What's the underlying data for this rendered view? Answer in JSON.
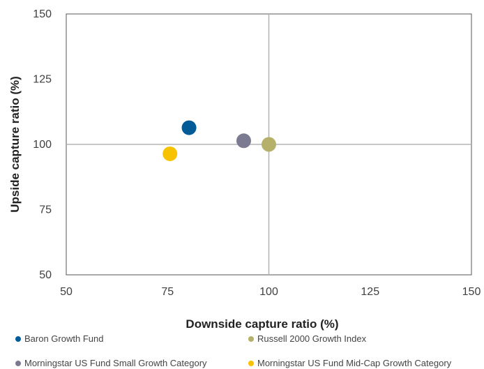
{
  "chart_data": {
    "type": "scatter",
    "xlabel": "Downside capture ratio  (%)",
    "ylabel": "Upside capture ratio  (%)",
    "xlim": [
      50,
      150
    ],
    "ylim": [
      50,
      150
    ],
    "xticks": [
      50,
      75,
      100,
      125,
      150
    ],
    "yticks": [
      50,
      75,
      100,
      125,
      150
    ],
    "reference_lines": {
      "x": 100,
      "y": 100
    },
    "grid": false,
    "legend_position": "bottom",
    "series": [
      {
        "name": "Baron Growth Fund",
        "color": "#005b96",
        "x": 80.3,
        "y": 106.4
      },
      {
        "name": "Russell 2000 Growth Index",
        "color": "#b5b06a",
        "x": 100.0,
        "y": 100.0
      },
      {
        "name": "Morningstar US Fund Small Growth Category",
        "color": "#7c7a90",
        "x": 93.8,
        "y": 101.4
      },
      {
        "name": "Morningstar US Fund Mid-Cap Growth Category",
        "color": "#f7c300",
        "x": 75.6,
        "y": 96.4
      }
    ]
  }
}
